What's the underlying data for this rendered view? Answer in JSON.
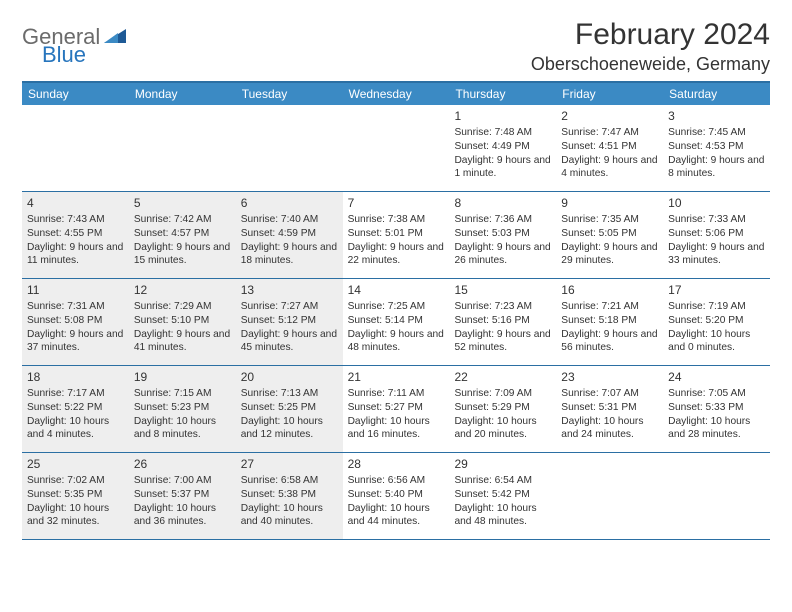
{
  "logo": {
    "part1": "General",
    "part2": "Blue"
  },
  "title": "February 2024",
  "location": "Oberschoeneweide, Germany",
  "colors": {
    "header_bg": "#3b8ac4",
    "header_border": "#2b6fa3",
    "shaded_bg": "#eeeeee",
    "text": "#333333",
    "logo_gray": "#6b6b6b",
    "logo_blue": "#2775bd"
  },
  "day_headers": [
    "Sunday",
    "Monday",
    "Tuesday",
    "Wednesday",
    "Thursday",
    "Friday",
    "Saturday"
  ],
  "weeks": [
    [
      {
        "n": "",
        "sr": "",
        "ss": "",
        "dl": "",
        "sh": false
      },
      {
        "n": "",
        "sr": "",
        "ss": "",
        "dl": "",
        "sh": false
      },
      {
        "n": "",
        "sr": "",
        "ss": "",
        "dl": "",
        "sh": false
      },
      {
        "n": "",
        "sr": "",
        "ss": "",
        "dl": "",
        "sh": false
      },
      {
        "n": "1",
        "sr": "Sunrise: 7:48 AM",
        "ss": "Sunset: 4:49 PM",
        "dl": "Daylight: 9 hours and 1 minute.",
        "sh": false
      },
      {
        "n": "2",
        "sr": "Sunrise: 7:47 AM",
        "ss": "Sunset: 4:51 PM",
        "dl": "Daylight: 9 hours and 4 minutes.",
        "sh": false
      },
      {
        "n": "3",
        "sr": "Sunrise: 7:45 AM",
        "ss": "Sunset: 4:53 PM",
        "dl": "Daylight: 9 hours and 8 minutes.",
        "sh": false
      }
    ],
    [
      {
        "n": "4",
        "sr": "Sunrise: 7:43 AM",
        "ss": "Sunset: 4:55 PM",
        "dl": "Daylight: 9 hours and 11 minutes.",
        "sh": true
      },
      {
        "n": "5",
        "sr": "Sunrise: 7:42 AM",
        "ss": "Sunset: 4:57 PM",
        "dl": "Daylight: 9 hours and 15 minutes.",
        "sh": true
      },
      {
        "n": "6",
        "sr": "Sunrise: 7:40 AM",
        "ss": "Sunset: 4:59 PM",
        "dl": "Daylight: 9 hours and 18 minutes.",
        "sh": true
      },
      {
        "n": "7",
        "sr": "Sunrise: 7:38 AM",
        "ss": "Sunset: 5:01 PM",
        "dl": "Daylight: 9 hours and 22 minutes.",
        "sh": false
      },
      {
        "n": "8",
        "sr": "Sunrise: 7:36 AM",
        "ss": "Sunset: 5:03 PM",
        "dl": "Daylight: 9 hours and 26 minutes.",
        "sh": false
      },
      {
        "n": "9",
        "sr": "Sunrise: 7:35 AM",
        "ss": "Sunset: 5:05 PM",
        "dl": "Daylight: 9 hours and 29 minutes.",
        "sh": false
      },
      {
        "n": "10",
        "sr": "Sunrise: 7:33 AM",
        "ss": "Sunset: 5:06 PM",
        "dl": "Daylight: 9 hours and 33 minutes.",
        "sh": false
      }
    ],
    [
      {
        "n": "11",
        "sr": "Sunrise: 7:31 AM",
        "ss": "Sunset: 5:08 PM",
        "dl": "Daylight: 9 hours and 37 minutes.",
        "sh": true
      },
      {
        "n": "12",
        "sr": "Sunrise: 7:29 AM",
        "ss": "Sunset: 5:10 PM",
        "dl": "Daylight: 9 hours and 41 minutes.",
        "sh": true
      },
      {
        "n": "13",
        "sr": "Sunrise: 7:27 AM",
        "ss": "Sunset: 5:12 PM",
        "dl": "Daylight: 9 hours and 45 minutes.",
        "sh": true
      },
      {
        "n": "14",
        "sr": "Sunrise: 7:25 AM",
        "ss": "Sunset: 5:14 PM",
        "dl": "Daylight: 9 hours and 48 minutes.",
        "sh": false
      },
      {
        "n": "15",
        "sr": "Sunrise: 7:23 AM",
        "ss": "Sunset: 5:16 PM",
        "dl": "Daylight: 9 hours and 52 minutes.",
        "sh": false
      },
      {
        "n": "16",
        "sr": "Sunrise: 7:21 AM",
        "ss": "Sunset: 5:18 PM",
        "dl": "Daylight: 9 hours and 56 minutes.",
        "sh": false
      },
      {
        "n": "17",
        "sr": "Sunrise: 7:19 AM",
        "ss": "Sunset: 5:20 PM",
        "dl": "Daylight: 10 hours and 0 minutes.",
        "sh": false
      }
    ],
    [
      {
        "n": "18",
        "sr": "Sunrise: 7:17 AM",
        "ss": "Sunset: 5:22 PM",
        "dl": "Daylight: 10 hours and 4 minutes.",
        "sh": true
      },
      {
        "n": "19",
        "sr": "Sunrise: 7:15 AM",
        "ss": "Sunset: 5:23 PM",
        "dl": "Daylight: 10 hours and 8 minutes.",
        "sh": true
      },
      {
        "n": "20",
        "sr": "Sunrise: 7:13 AM",
        "ss": "Sunset: 5:25 PM",
        "dl": "Daylight: 10 hours and 12 minutes.",
        "sh": true
      },
      {
        "n": "21",
        "sr": "Sunrise: 7:11 AM",
        "ss": "Sunset: 5:27 PM",
        "dl": "Daylight: 10 hours and 16 minutes.",
        "sh": false
      },
      {
        "n": "22",
        "sr": "Sunrise: 7:09 AM",
        "ss": "Sunset: 5:29 PM",
        "dl": "Daylight: 10 hours and 20 minutes.",
        "sh": false
      },
      {
        "n": "23",
        "sr": "Sunrise: 7:07 AM",
        "ss": "Sunset: 5:31 PM",
        "dl": "Daylight: 10 hours and 24 minutes.",
        "sh": false
      },
      {
        "n": "24",
        "sr": "Sunrise: 7:05 AM",
        "ss": "Sunset: 5:33 PM",
        "dl": "Daylight: 10 hours and 28 minutes.",
        "sh": false
      }
    ],
    [
      {
        "n": "25",
        "sr": "Sunrise: 7:02 AM",
        "ss": "Sunset: 5:35 PM",
        "dl": "Daylight: 10 hours and 32 minutes.",
        "sh": true
      },
      {
        "n": "26",
        "sr": "Sunrise: 7:00 AM",
        "ss": "Sunset: 5:37 PM",
        "dl": "Daylight: 10 hours and 36 minutes.",
        "sh": true
      },
      {
        "n": "27",
        "sr": "Sunrise: 6:58 AM",
        "ss": "Sunset: 5:38 PM",
        "dl": "Daylight: 10 hours and 40 minutes.",
        "sh": true
      },
      {
        "n": "28",
        "sr": "Sunrise: 6:56 AM",
        "ss": "Sunset: 5:40 PM",
        "dl": "Daylight: 10 hours and 44 minutes.",
        "sh": false
      },
      {
        "n": "29",
        "sr": "Sunrise: 6:54 AM",
        "ss": "Sunset: 5:42 PM",
        "dl": "Daylight: 10 hours and 48 minutes.",
        "sh": false
      },
      {
        "n": "",
        "sr": "",
        "ss": "",
        "dl": "",
        "sh": false
      },
      {
        "n": "",
        "sr": "",
        "ss": "",
        "dl": "",
        "sh": false
      }
    ]
  ]
}
